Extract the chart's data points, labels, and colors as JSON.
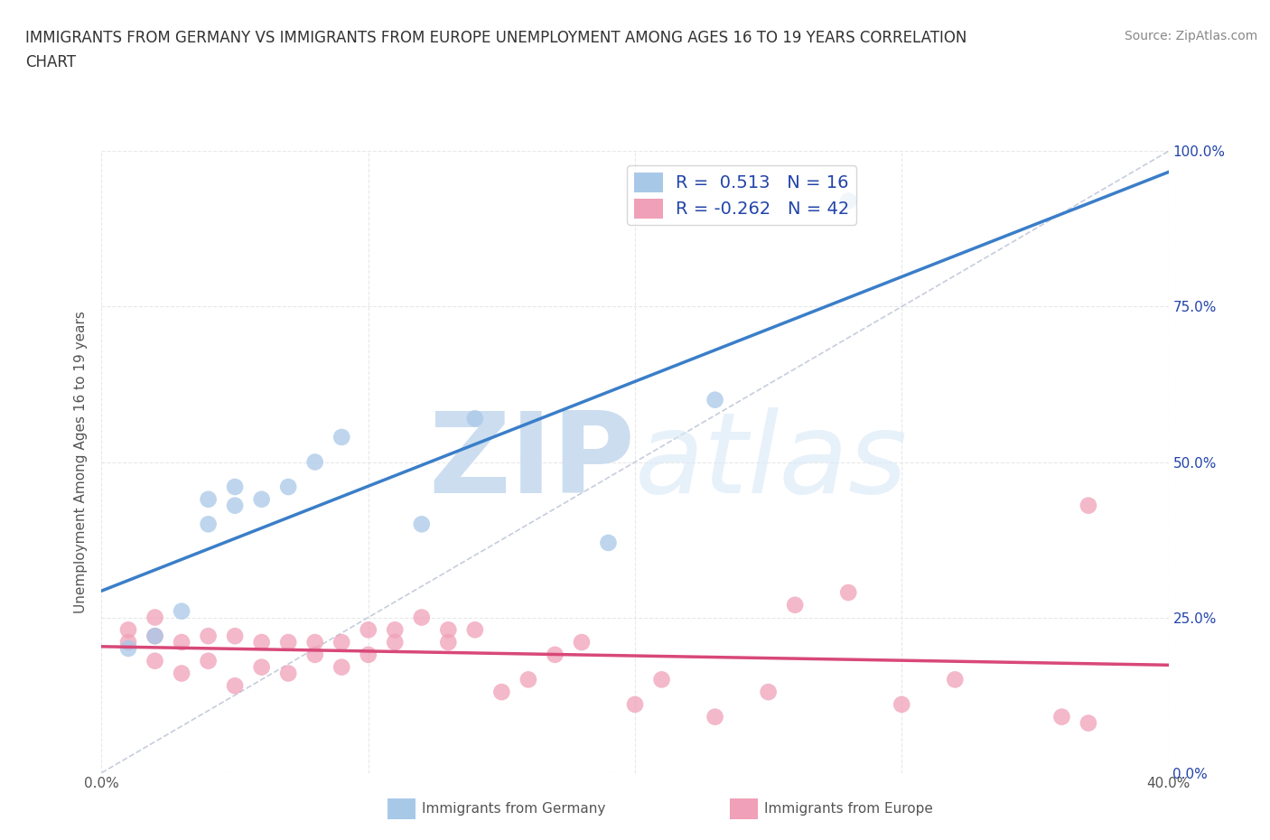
{
  "title_line1": "IMMIGRANTS FROM GERMANY VS IMMIGRANTS FROM EUROPE UNEMPLOYMENT AMONG AGES 16 TO 19 YEARS CORRELATION",
  "title_line2": "CHART",
  "source": "Source: ZipAtlas.com",
  "ylabel": "Unemployment Among Ages 16 to 19 years",
  "xlim": [
    0.0,
    0.4
  ],
  "ylim": [
    0.0,
    1.0
  ],
  "xticks": [
    0.0,
    0.1,
    0.2,
    0.3,
    0.4
  ],
  "yticks": [
    0.0,
    0.25,
    0.5,
    0.75,
    1.0
  ],
  "xtick_labels": [
    "0.0%",
    "",
    "",
    "",
    "40.0%"
  ],
  "ytick_labels_right": [
    "0.0%",
    "25.0%",
    "50.0%",
    "75.0%",
    "100.0%"
  ],
  "germany_color": "#a8c8e8",
  "europe_color": "#f0a0b8",
  "germany_line_color": "#3a7ec8",
  "europe_line_color": "#d84878",
  "diag_line_color": "#c0c8d8",
  "germany_R": 0.513,
  "germany_N": 16,
  "europe_R": -0.262,
  "europe_N": 42,
  "germany_scatter_x": [
    0.01,
    0.02,
    0.03,
    0.04,
    0.04,
    0.05,
    0.05,
    0.06,
    0.07,
    0.08,
    0.09,
    0.12,
    0.14,
    0.19,
    0.23,
    0.28
  ],
  "germany_scatter_y": [
    0.2,
    0.22,
    0.26,
    0.4,
    0.44,
    0.43,
    0.46,
    0.44,
    0.46,
    0.5,
    0.54,
    0.4,
    0.57,
    0.37,
    0.6,
    0.92
  ],
  "europe_scatter_x": [
    0.01,
    0.01,
    0.02,
    0.02,
    0.02,
    0.03,
    0.03,
    0.04,
    0.04,
    0.05,
    0.05,
    0.06,
    0.06,
    0.07,
    0.07,
    0.08,
    0.08,
    0.09,
    0.09,
    0.1,
    0.1,
    0.11,
    0.11,
    0.12,
    0.13,
    0.13,
    0.14,
    0.15,
    0.16,
    0.17,
    0.18,
    0.2,
    0.21,
    0.23,
    0.25,
    0.26,
    0.28,
    0.3,
    0.32,
    0.36,
    0.37,
    0.37
  ],
  "europe_scatter_y": [
    0.21,
    0.23,
    0.18,
    0.22,
    0.25,
    0.16,
    0.21,
    0.18,
    0.22,
    0.14,
    0.22,
    0.17,
    0.21,
    0.16,
    0.21,
    0.19,
    0.21,
    0.17,
    0.21,
    0.19,
    0.23,
    0.21,
    0.23,
    0.25,
    0.21,
    0.23,
    0.23,
    0.13,
    0.15,
    0.19,
    0.21,
    0.11,
    0.15,
    0.09,
    0.13,
    0.27,
    0.29,
    0.11,
    0.15,
    0.09,
    0.43,
    0.08
  ],
  "watermark_zip": "ZIP",
  "watermark_atlas": "atlas",
  "watermark_color": "#ccddf0",
  "background_color": "#ffffff",
  "grid_color": "#e8e8e8",
  "legend_label_color": "#2244aa",
  "bottom_legend_color": "#555555"
}
